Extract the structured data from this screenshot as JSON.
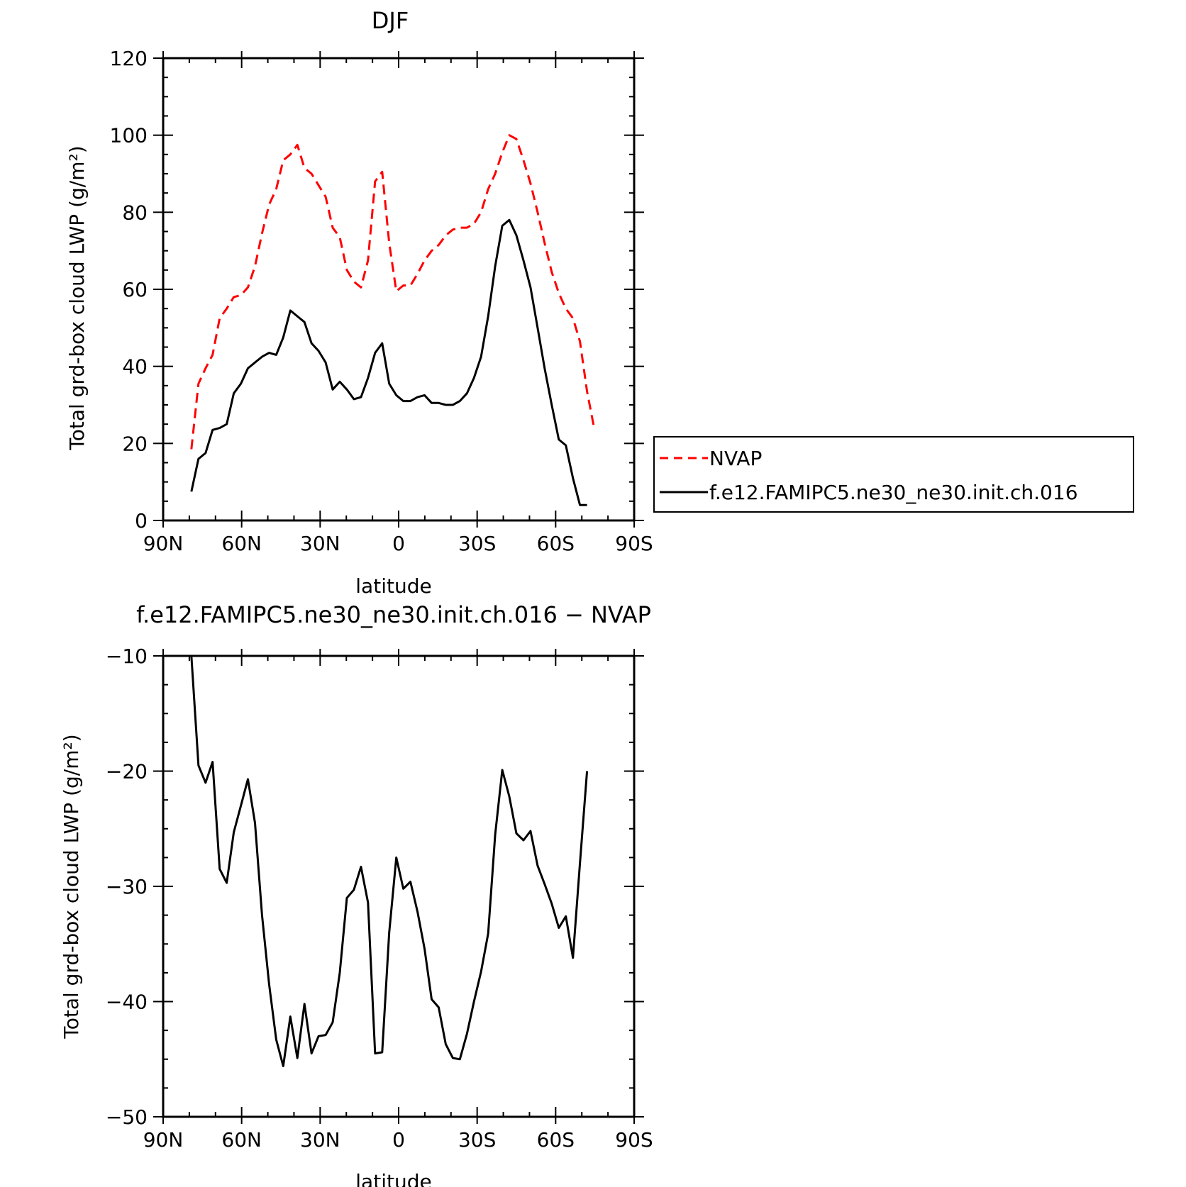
{
  "chart_data": [
    {
      "type": "line",
      "title": "DJF",
      "xlabel": "latitude",
      "ylabel": "Total grd-box cloud LWP (g/m²)",
      "xlim": [
        -90,
        90
      ],
      "ylim": [
        0,
        120
      ],
      "xticks": [
        -90,
        -60,
        -30,
        0,
        30,
        60,
        90
      ],
      "xtick_labels": [
        "90N",
        "60N",
        "30N",
        "0",
        "30S",
        "60S",
        "90S"
      ],
      "yticks": [
        0,
        20,
        40,
        60,
        80,
        100,
        120
      ],
      "ytick_labels": [
        "0",
        "20",
        "40",
        "60",
        "80",
        "100",
        "120"
      ],
      "grid": false,
      "legend": "right",
      "x": [
        -79.2,
        -76.5,
        -73.8,
        -71.1,
        -68.4,
        -65.7,
        -63.0,
        -60.3,
        -57.6,
        -54.9,
        -52.2,
        -49.5,
        -46.8,
        -44.1,
        -41.4,
        -38.7,
        -36.0,
        -33.3,
        -30.6,
        -27.9,
        -25.2,
        -22.5,
        -19.8,
        -17.1,
        -14.4,
        -11.7,
        -9.0,
        -6.3,
        -3.6,
        -0.9,
        1.8,
        4.5,
        7.2,
        9.9,
        12.6,
        15.3,
        18.0,
        20.7,
        23.4,
        26.1,
        28.8,
        31.5,
        34.2,
        36.9,
        39.6,
        42.3,
        45.0,
        47.7,
        50.4,
        53.1,
        55.8,
        58.5,
        61.2,
        63.9,
        66.6,
        69.3,
        72.0,
        74.7,
        77.4
      ],
      "series": [
        {
          "name": "NVAP",
          "color": "#ff0000",
          "dash": "dashed",
          "values": [
            18.5,
            35.5,
            39.5,
            43.0,
            52.5,
            55.0,
            58.0,
            58.5,
            60.5,
            66.0,
            74.5,
            82.0,
            86.0,
            93.5,
            95.0,
            97.5,
            91.5,
            90.0,
            87.0,
            84.0,
            76.0,
            73.5,
            65.0,
            62.0,
            60.5,
            67.5,
            88.0,
            90.5,
            72.0,
            59.5,
            61.0,
            61.0,
            64.0,
            67.5,
            70.0,
            71.5,
            74.0,
            75.5,
            76.0,
            76.0,
            77.0,
            80.0,
            86.0,
            90.0,
            95.5,
            100.0,
            99.0,
            93.5,
            87.5,
            80.0,
            72.0,
            64.5,
            59.0,
            55.0,
            52.5,
            46.5,
            33.5,
            24.0,
            null
          ]
        },
        {
          "name": "f.e12.FAMIPC5.ne30_ne30.init.ch.016",
          "color": "#000000",
          "dash": "solid",
          "values": [
            7.5,
            16.0,
            17.5,
            23.5,
            24.0,
            25.0,
            33.0,
            35.5,
            39.5,
            41.0,
            42.5,
            43.5,
            43.0,
            47.5,
            54.5,
            53.0,
            51.5,
            46.0,
            44.0,
            41.0,
            34.0,
            36.0,
            34.0,
            31.5,
            32.0,
            37.0,
            43.5,
            46.0,
            35.5,
            32.5,
            31.0,
            31.0,
            32.0,
            32.5,
            30.5,
            30.5,
            30.0,
            30.0,
            31.0,
            33.0,
            37.0,
            42.5,
            53.0,
            66.0,
            76.5,
            78.0,
            74.0,
            67.5,
            60.5,
            50.0,
            39.5,
            30.0,
            21.0,
            19.5,
            11.0,
            4.0,
            4.0,
            null,
            null
          ]
        }
      ]
    },
    {
      "type": "line",
      "title": "f.e12.FAMIPC5.ne30_ne30.init.ch.016 − NVAP",
      "xlabel": "latitude",
      "ylabel": "Total grd-box cloud LWP (g/m²)",
      "xlim": [
        -90,
        90
      ],
      "ylim": [
        -50,
        -10
      ],
      "xticks": [
        -90,
        -60,
        -30,
        0,
        30,
        60,
        90
      ],
      "xtick_labels": [
        "90N",
        "60N",
        "30N",
        "0",
        "30S",
        "60S",
        "90S"
      ],
      "yticks": [
        -50,
        -40,
        -30,
        -20,
        -10
      ],
      "ytick_labels": [
        "−50",
        "−40",
        "−30",
        "−20",
        "−10"
      ],
      "grid": false,
      "x": [
        -79.2,
        -76.5,
        -73.8,
        -71.1,
        -68.4,
        -65.7,
        -63.0,
        -60.3,
        -57.6,
        -54.9,
        -52.2,
        -49.5,
        -46.8,
        -44.1,
        -41.4,
        -38.7,
        -36.0,
        -33.3,
        -30.6,
        -27.9,
        -25.2,
        -22.5,
        -19.8,
        -17.1,
        -14.4,
        -11.7,
        -9.0,
        -6.3,
        -3.6,
        -0.9,
        1.8,
        4.5,
        7.2,
        9.9,
        12.6,
        15.3,
        18.0,
        20.7,
        23.4,
        26.1,
        28.8,
        31.5,
        34.2,
        36.9,
        39.6,
        42.3,
        45.0,
        47.7,
        50.4,
        53.1,
        55.8,
        58.5,
        61.2,
        63.9,
        66.6,
        69.3,
        72.0,
        74.7,
        77.4
      ],
      "series": [
        {
          "color": "#000000",
          "dash": "solid",
          "values": [
            -10.0,
            -19.5,
            -21.0,
            -19.2,
            -28.5,
            -29.7,
            -25.3,
            -23.0,
            -20.7,
            -24.5,
            -32.5,
            -38.5,
            -43.3,
            -45.6,
            -41.3,
            -44.9,
            -40.2,
            -44.5,
            -43.0,
            -42.9,
            -41.8,
            -37.5,
            -31.0,
            -30.3,
            -28.3,
            -31.4,
            -44.5,
            -44.4,
            -34.0,
            -27.5,
            -30.2,
            -29.6,
            -32.2,
            -35.4,
            -39.8,
            -40.5,
            -43.7,
            -44.9,
            -45.0,
            -42.8,
            -40.0,
            -37.4,
            -34.1,
            -25.5,
            -19.9,
            -22.2,
            -25.4,
            -26.0,
            -25.2,
            -28.2,
            -29.8,
            -31.5,
            -33.6,
            -32.6,
            -36.2,
            -28.0,
            -20.0,
            null,
            null
          ]
        }
      ]
    }
  ]
}
